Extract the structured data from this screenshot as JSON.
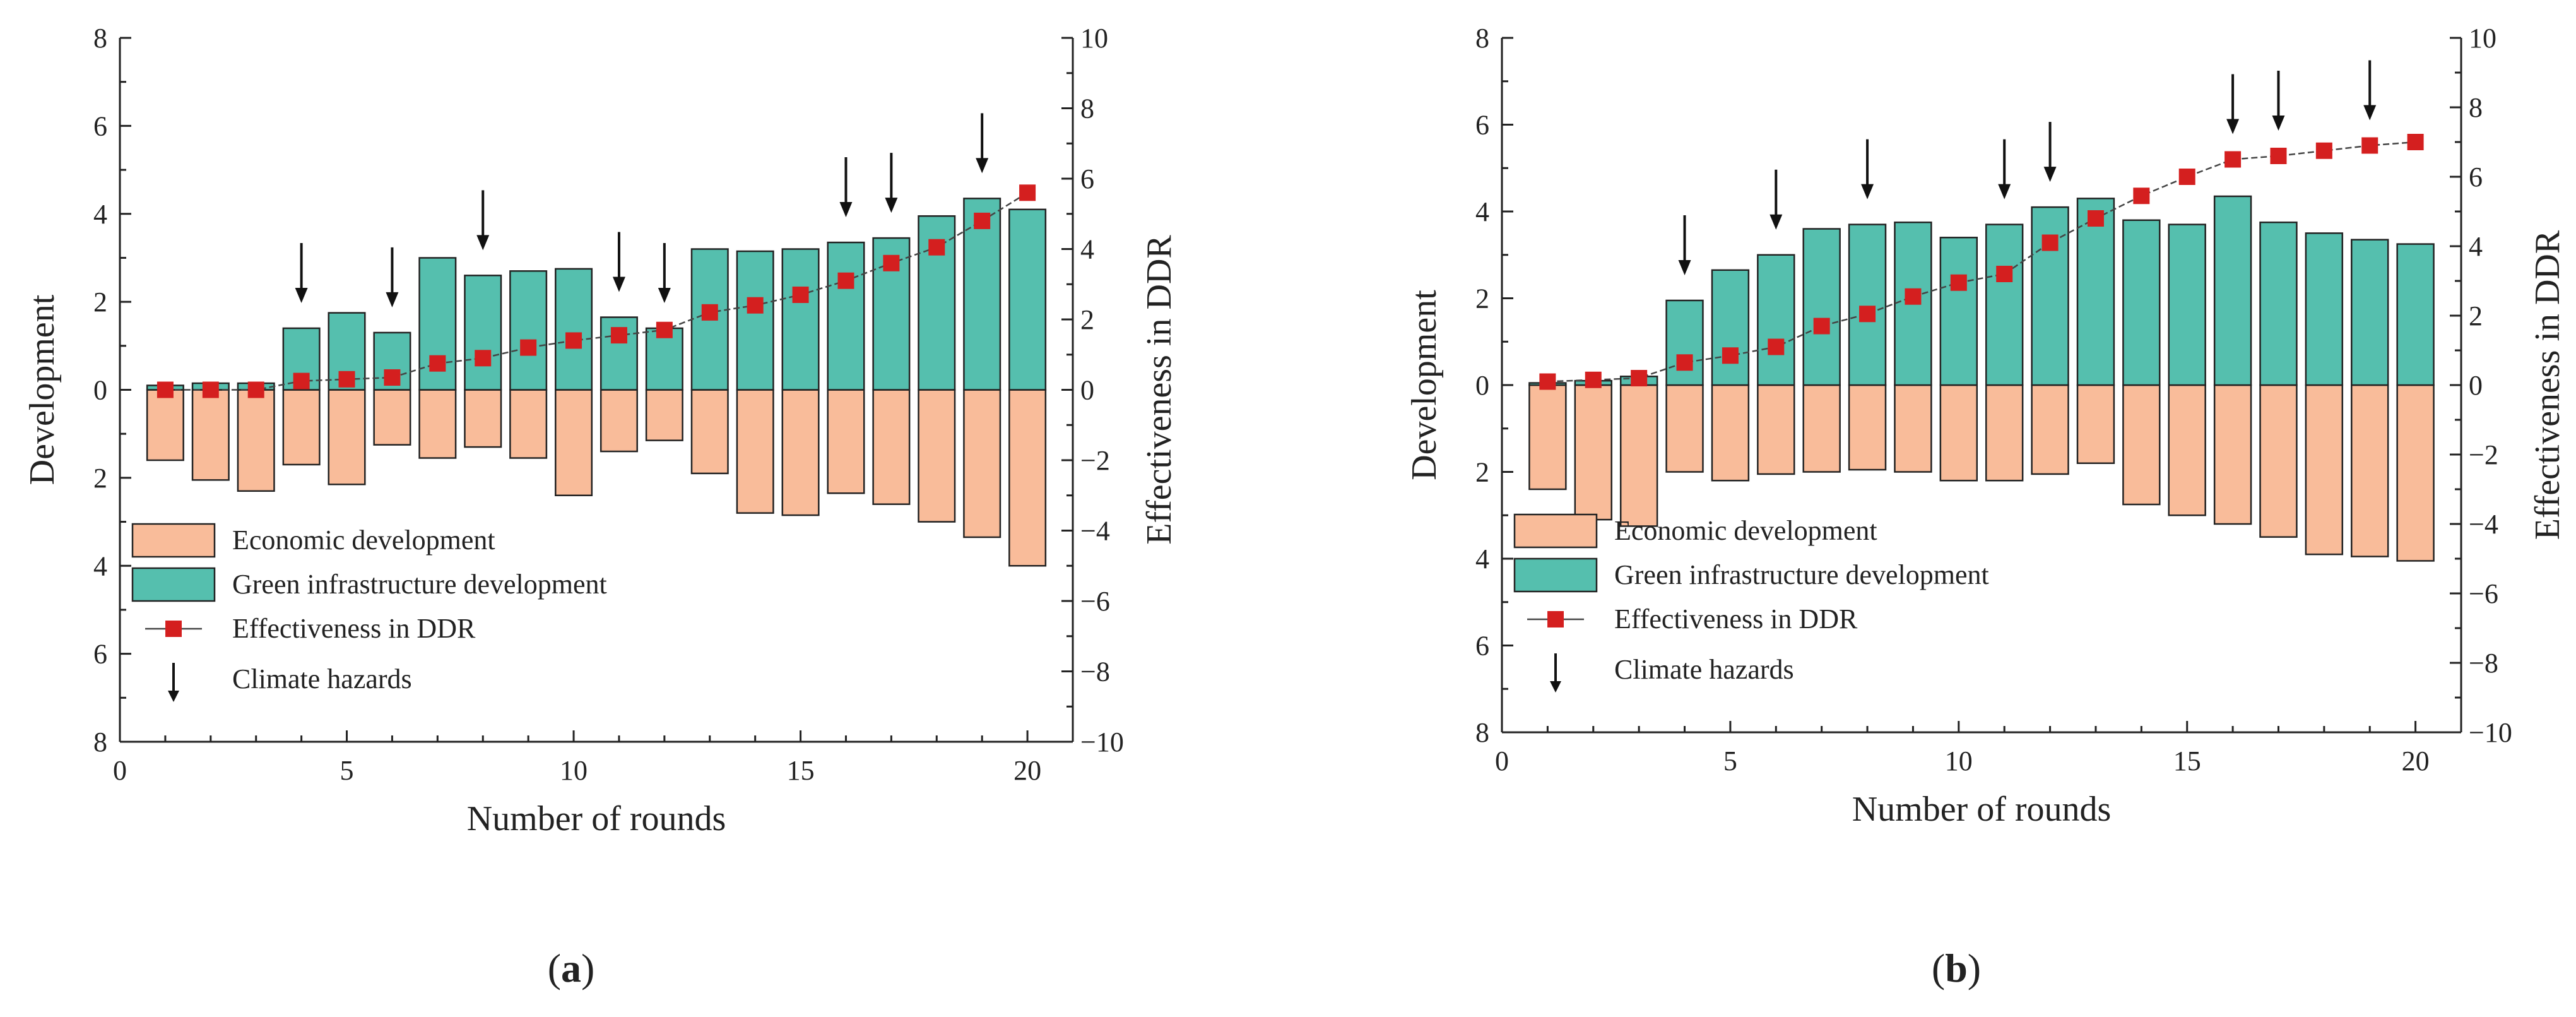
{
  "colors": {
    "economic": "#f9bc9a",
    "green": "#55bfae",
    "line": "#444444",
    "marker": "#d41f1f",
    "arrow": "#111111",
    "bar_stroke": "#222222"
  },
  "chart_data": [
    {
      "type": "bar",
      "panel_label_open": "(",
      "panel_label_letter": "a",
      "panel_label_close": ")",
      "xlabel": "Number of rounds",
      "ylabel": "Development",
      "y2label": "Effectiveness in DDR",
      "xlim": [
        0,
        21
      ],
      "ylim": [
        -8,
        8
      ],
      "y2lim": [
        -10,
        10
      ],
      "xticks": [
        0,
        5,
        10,
        15,
        20
      ],
      "yticks": [
        -8,
        -6,
        -4,
        -2,
        0,
        2,
        4,
        6,
        8
      ],
      "yticklabels": [
        "8",
        "6",
        "4",
        "2",
        "0",
        "2",
        "4",
        "6",
        "8"
      ],
      "y2ticks": [
        -10,
        -8,
        -6,
        -4,
        -2,
        0,
        2,
        4,
        6,
        8,
        10
      ],
      "y2ticklabels": [
        "−10",
        "−8",
        "−6",
        "−4",
        "−2",
        "0",
        "2",
        "4",
        "6",
        "8",
        "10"
      ],
      "rounds": [
        1,
        2,
        3,
        4,
        5,
        6,
        7,
        8,
        9,
        10,
        11,
        12,
        13,
        14,
        15,
        16,
        17,
        18,
        19,
        20
      ],
      "series": [
        {
          "name": "Economic development",
          "axis": "left",
          "values": [
            -1.6,
            -2.05,
            -2.3,
            -1.7,
            -2.15,
            -1.25,
            -1.55,
            -1.3,
            -1.55,
            -2.4,
            -1.4,
            -1.15,
            -1.9,
            -2.8,
            -2.85,
            -2.35,
            -2.6,
            -3.0,
            -3.35,
            -4.0
          ]
        },
        {
          "name": "Green infrastructure development",
          "axis": "left",
          "values": [
            0.1,
            0.15,
            0.15,
            1.4,
            1.75,
            1.3,
            3.0,
            2.6,
            2.7,
            2.75,
            1.65,
            1.4,
            3.2,
            3.15,
            3.2,
            3.35,
            3.45,
            3.95,
            4.35,
            4.1
          ]
        },
        {
          "name": "Effectiveness in DDR",
          "axis": "right",
          "values": [
            0.0,
            0.0,
            0.0,
            0.25,
            0.3,
            0.35,
            0.75,
            0.9,
            1.2,
            1.4,
            1.55,
            1.7,
            2.2,
            2.4,
            2.7,
            3.1,
            3.6,
            4.05,
            4.8,
            5.6
          ]
        }
      ],
      "climate_hazards": [
        4,
        6,
        8,
        11,
        12,
        16,
        17,
        19
      ],
      "legend": [
        "Economic development",
        "Green infrastructure development",
        "Effectiveness in DDR",
        "Climate hazards"
      ]
    },
    {
      "type": "bar",
      "panel_label_open": "(",
      "panel_label_letter": "b",
      "panel_label_close": ")",
      "xlabel": "Number of rounds",
      "ylabel": "Development",
      "y2label": "Effectiveness in DDR",
      "xlim": [
        0,
        21
      ],
      "ylim": [
        -8,
        8
      ],
      "y2lim": [
        -10,
        10
      ],
      "xticks": [
        0,
        5,
        10,
        15,
        20
      ],
      "yticks": [
        -8,
        -6,
        -4,
        -2,
        0,
        2,
        4,
        6,
        8
      ],
      "yticklabels": [
        "8",
        "6",
        "4",
        "2",
        "0",
        "2",
        "4",
        "6",
        "8"
      ],
      "y2ticks": [
        -10,
        -8,
        -6,
        -4,
        -2,
        0,
        2,
        4,
        6,
        8,
        10
      ],
      "y2ticklabels": [
        "−10",
        "−8",
        "−6",
        "−4",
        "−2",
        "0",
        "2",
        "4",
        "6",
        "8",
        "10"
      ],
      "rounds": [
        1,
        2,
        3,
        4,
        5,
        6,
        7,
        8,
        9,
        10,
        11,
        12,
        13,
        14,
        15,
        16,
        17,
        18,
        19,
        20
      ],
      "series": [
        {
          "name": "Economic development",
          "axis": "left",
          "values": [
            -2.4,
            -3.1,
            -3.25,
            -2.0,
            -2.2,
            -2.05,
            -2.0,
            -1.95,
            -2.0,
            -2.2,
            -2.2,
            -2.05,
            -1.8,
            -2.75,
            -3.0,
            -3.2,
            -3.5,
            -3.9,
            -3.95,
            -4.05
          ]
        },
        {
          "name": "Green infrastructure development",
          "axis": "left",
          "values": [
            0.05,
            0.1,
            0.2,
            1.95,
            2.65,
            3.0,
            3.6,
            3.7,
            3.75,
            3.4,
            3.7,
            4.1,
            4.3,
            3.8,
            3.7,
            4.35,
            3.75,
            3.5,
            3.35,
            3.25
          ]
        },
        {
          "name": "Effectiveness in DDR",
          "axis": "right",
          "values": [
            0.1,
            0.15,
            0.2,
            0.65,
            0.85,
            1.1,
            1.7,
            2.05,
            2.55,
            2.95,
            3.2,
            4.1,
            4.8,
            5.45,
            6.0,
            6.5,
            6.6,
            6.75,
            6.9,
            7.0
          ]
        }
      ],
      "climate_hazards": [
        4,
        6,
        8,
        11,
        12,
        16,
        17,
        19
      ],
      "legend": [
        "Economic development",
        "Green infrastructure development",
        "Effectiveness in DDR",
        "Climate hazards"
      ]
    }
  ]
}
